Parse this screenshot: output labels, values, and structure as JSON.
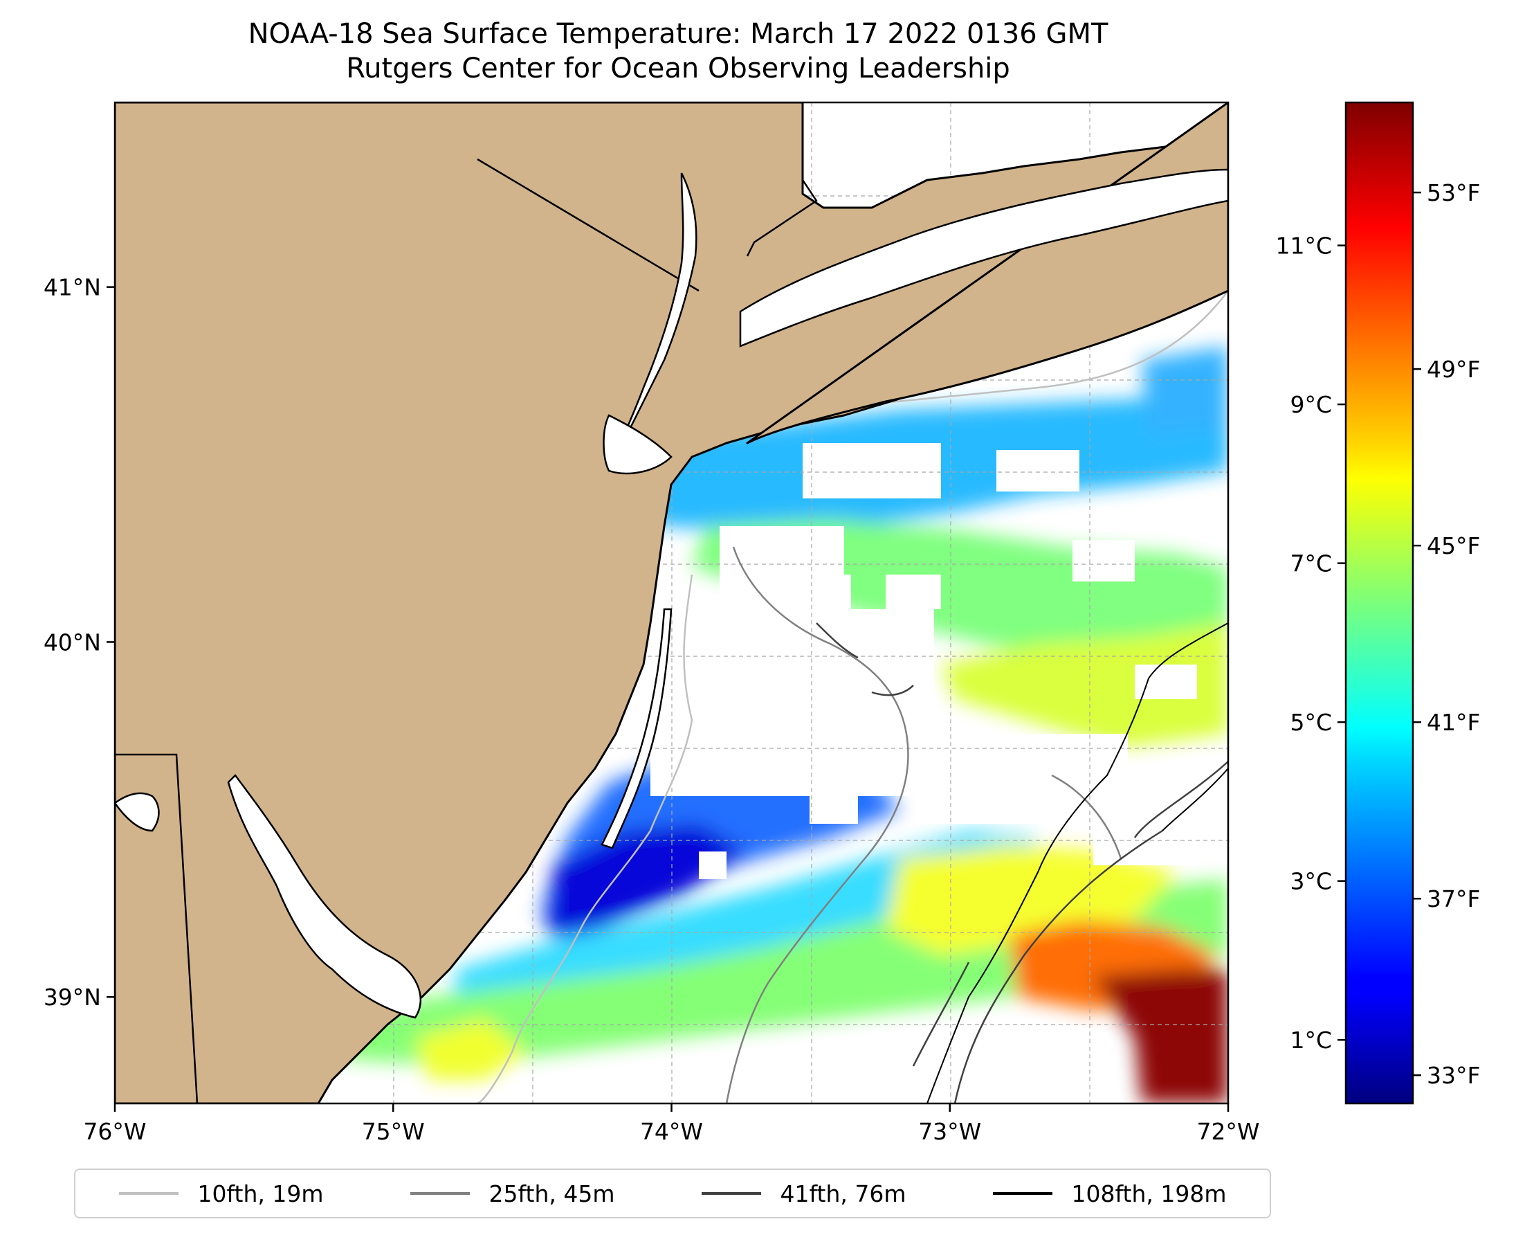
{
  "title": {
    "line1": "NOAA-18 Sea Surface Temperature: March 17 2022 0136 GMT",
    "line2": "Rutgers Center for Ocean Observing Leadership"
  },
  "map": {
    "lon_range": [
      -76,
      -72
    ],
    "lat_range": [
      38.7,
      41.52
    ],
    "x_ticks": [
      {
        "value": -76,
        "label": "76°W"
      },
      {
        "value": -75,
        "label": "75°W"
      },
      {
        "value": -74,
        "label": "74°W"
      },
      {
        "value": -73,
        "label": "73°W"
      },
      {
        "value": -72,
        "label": "72°W"
      }
    ],
    "y_ticks": [
      {
        "value": 41,
        "label": "41°N"
      },
      {
        "value": 40,
        "label": "40°N"
      },
      {
        "value": 39,
        "label": "39°N"
      }
    ],
    "colors": {
      "land": "#d2b48c",
      "no_data": "#ffffff",
      "coastline": "#000000",
      "grid": "#9e9e9e"
    }
  },
  "colorbar": {
    "colormap": "jet",
    "range_c": [
      0.2,
      12.8
    ],
    "celsius_ticks": [
      {
        "value": 1,
        "label": "1°C"
      },
      {
        "value": 3,
        "label": "3°C"
      },
      {
        "value": 5,
        "label": "5°C"
      },
      {
        "value": 7,
        "label": "7°C"
      },
      {
        "value": 9,
        "label": "9°C"
      },
      {
        "value": 11,
        "label": "11°C"
      }
    ],
    "fahrenheit_ticks": [
      {
        "value": 33,
        "label": "33°F"
      },
      {
        "value": 37,
        "label": "37°F"
      },
      {
        "value": 41,
        "label": "41°F"
      },
      {
        "value": 45,
        "label": "45°F"
      },
      {
        "value": 49,
        "label": "49°F"
      },
      {
        "value": 53,
        "label": "53°F"
      }
    ]
  },
  "legend": [
    {
      "label": "10fth, 19m",
      "color": "#c0c0c0"
    },
    {
      "label": "25fth, 45m",
      "color": "#808080"
    },
    {
      "label": "41fth, 76m",
      "color": "#404040"
    },
    {
      "label": "108fth, 198m",
      "color": "#000000"
    }
  ]
}
